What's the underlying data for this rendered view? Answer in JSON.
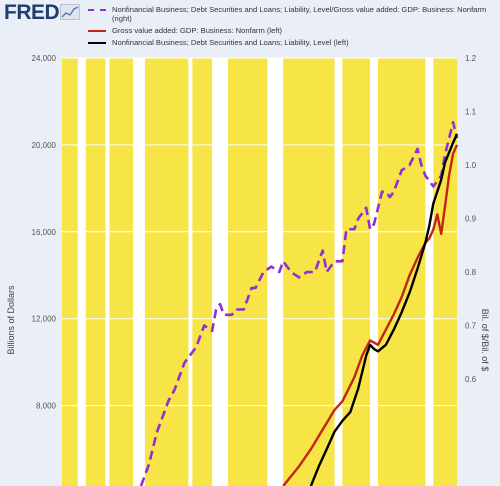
{
  "header": {
    "logo_text": "FRED",
    "logo_icon": "fred-chart-icon"
  },
  "chart_data": {
    "type": "line",
    "legend": [
      {
        "label": "Nonfinancial Business; Debt Securities and Loans; Liability, Level/Gross value added: GDP: Business: Nonfarm (right)",
        "color": "#9031cf",
        "style": "dashed"
      },
      {
        "label": "Gross value added: GDP: Business: Nonfarm (left)",
        "color": "#c02618",
        "style": "solid"
      },
      {
        "label": "Nonfinancial Business; Debt Securities and Loans; Liability, Level (left)",
        "color": "#000000",
        "style": "solid"
      }
    ],
    "ylabel_left": "Billions of Dollars",
    "ylabel_right": "Bil. of $/Bil. of $",
    "ylim_left": [
      4300,
      24000
    ],
    "ylim_right": [
      0.4,
      1.2
    ],
    "left_ticks": [
      "8,000",
      "12,000",
      "16,000",
      "20,000",
      "24,000"
    ],
    "left_tick_values": [
      8000,
      12000,
      16000,
      20000,
      24000
    ],
    "right_ticks": [
      "0.6",
      "0.7",
      "0.8",
      "0.9",
      "1.0",
      "1.1",
      "1.2"
    ],
    "right_tick_values": [
      0.6,
      0.7,
      0.8,
      0.9,
      1.0,
      1.1,
      1.2
    ],
    "x_range": [
      0,
      100
    ],
    "background_color": "#f7e447",
    "recession_color": "#ffffff",
    "recession_bands": [
      [
        4,
        6
      ],
      [
        11,
        12
      ],
      [
        18,
        21
      ],
      [
        32,
        33
      ],
      [
        38,
        42
      ],
      [
        52,
        56
      ],
      [
        69,
        71
      ],
      [
        78,
        80
      ],
      [
        92,
        94
      ]
    ],
    "series": [
      {
        "name": "Nonfinancial Business; Debt Securities and Loans; Liability, Level/Gross value added: GDP: Business: Nonfarm (right)",
        "axis": "right",
        "color": "#9031cf",
        "dashed": true,
        "points": [
          [
            20,
            0.4
          ],
          [
            22,
            0.44
          ],
          [
            24,
            0.5
          ],
          [
            27,
            0.56
          ],
          [
            28.5,
            0.58
          ],
          [
            29.5,
            0.6
          ],
          [
            31,
            0.63
          ],
          [
            34,
            0.66
          ],
          [
            36,
            0.7
          ],
          [
            38,
            0.69
          ],
          [
            39,
            0.73
          ],
          [
            40,
            0.74
          ],
          [
            41,
            0.72
          ],
          [
            43,
            0.72
          ],
          [
            44,
            0.73
          ],
          [
            46,
            0.73
          ],
          [
            48,
            0.77
          ],
          [
            49,
            0.77
          ],
          [
            51,
            0.8
          ],
          [
            53,
            0.81
          ],
          [
            55,
            0.8
          ],
          [
            56,
            0.82
          ],
          [
            58,
            0.8
          ],
          [
            60,
            0.79
          ],
          [
            62,
            0.8
          ],
          [
            64,
            0.8
          ],
          [
            66,
            0.84
          ],
          [
            67,
            0.8
          ],
          [
            69,
            0.82
          ],
          [
            71,
            0.82
          ],
          [
            72,
            0.88
          ],
          [
            74,
            0.88
          ],
          [
            75,
            0.9
          ],
          [
            77,
            0.92
          ],
          [
            78,
            0.88
          ],
          [
            79,
            0.89
          ],
          [
            81,
            0.95
          ],
          [
            82,
            0.95
          ],
          [
            83,
            0.94
          ],
          [
            84,
            0.95
          ],
          [
            86,
            0.99
          ],
          [
            88,
            1.0
          ],
          [
            90,
            1.03
          ],
          [
            91,
            1.0
          ],
          [
            92,
            0.98
          ],
          [
            93,
            0.97
          ],
          [
            94,
            0.96
          ],
          [
            96,
            0.98
          ],
          [
            97,
            1.02
          ],
          [
            99,
            1.08
          ],
          [
            100,
            1.05
          ]
        ]
      },
      {
        "name": "Gross value added: GDP: Business: Nonfarm (left)",
        "axis": "left",
        "color": "#c02618",
        "dashed": false,
        "points": [
          [
            56,
            4300
          ],
          [
            60,
            5200
          ],
          [
            63,
            6000
          ],
          [
            66,
            6900
          ],
          [
            69,
            7800
          ],
          [
            71,
            8200
          ],
          [
            74,
            9300
          ],
          [
            76,
            10300
          ],
          [
            78,
            11000
          ],
          [
            80,
            10800
          ],
          [
            82,
            11500
          ],
          [
            84,
            12200
          ],
          [
            86,
            13000
          ],
          [
            88,
            14000
          ],
          [
            90,
            14800
          ],
          [
            92,
            15500
          ],
          [
            93,
            15700
          ],
          [
            94,
            16100
          ],
          [
            95,
            16800
          ],
          [
            96,
            15900
          ],
          [
            97,
            17200
          ],
          [
            98,
            18600
          ],
          [
            99,
            19600
          ],
          [
            100,
            20000
          ]
        ]
      },
      {
        "name": "Nonfinancial Business; Debt Securities and Loans; Liability, Level (left)",
        "axis": "left",
        "color": "#000000",
        "dashed": false,
        "points": [
          [
            63,
            4300
          ],
          [
            65,
            5200
          ],
          [
            67,
            6000
          ],
          [
            69,
            6800
          ],
          [
            71,
            7300
          ],
          [
            73,
            7700
          ],
          [
            75,
            8800
          ],
          [
            77,
            10300
          ],
          [
            78,
            10800
          ],
          [
            79,
            10600
          ],
          [
            80,
            10500
          ],
          [
            82,
            10800
          ],
          [
            84,
            11500
          ],
          [
            86,
            12300
          ],
          [
            88,
            13200
          ],
          [
            90,
            14300
          ],
          [
            92,
            15500
          ],
          [
            93,
            16300
          ],
          [
            94,
            17300
          ],
          [
            96,
            18400
          ],
          [
            97,
            19200
          ],
          [
            99,
            20100
          ],
          [
            100,
            20500
          ]
        ]
      }
    ]
  }
}
